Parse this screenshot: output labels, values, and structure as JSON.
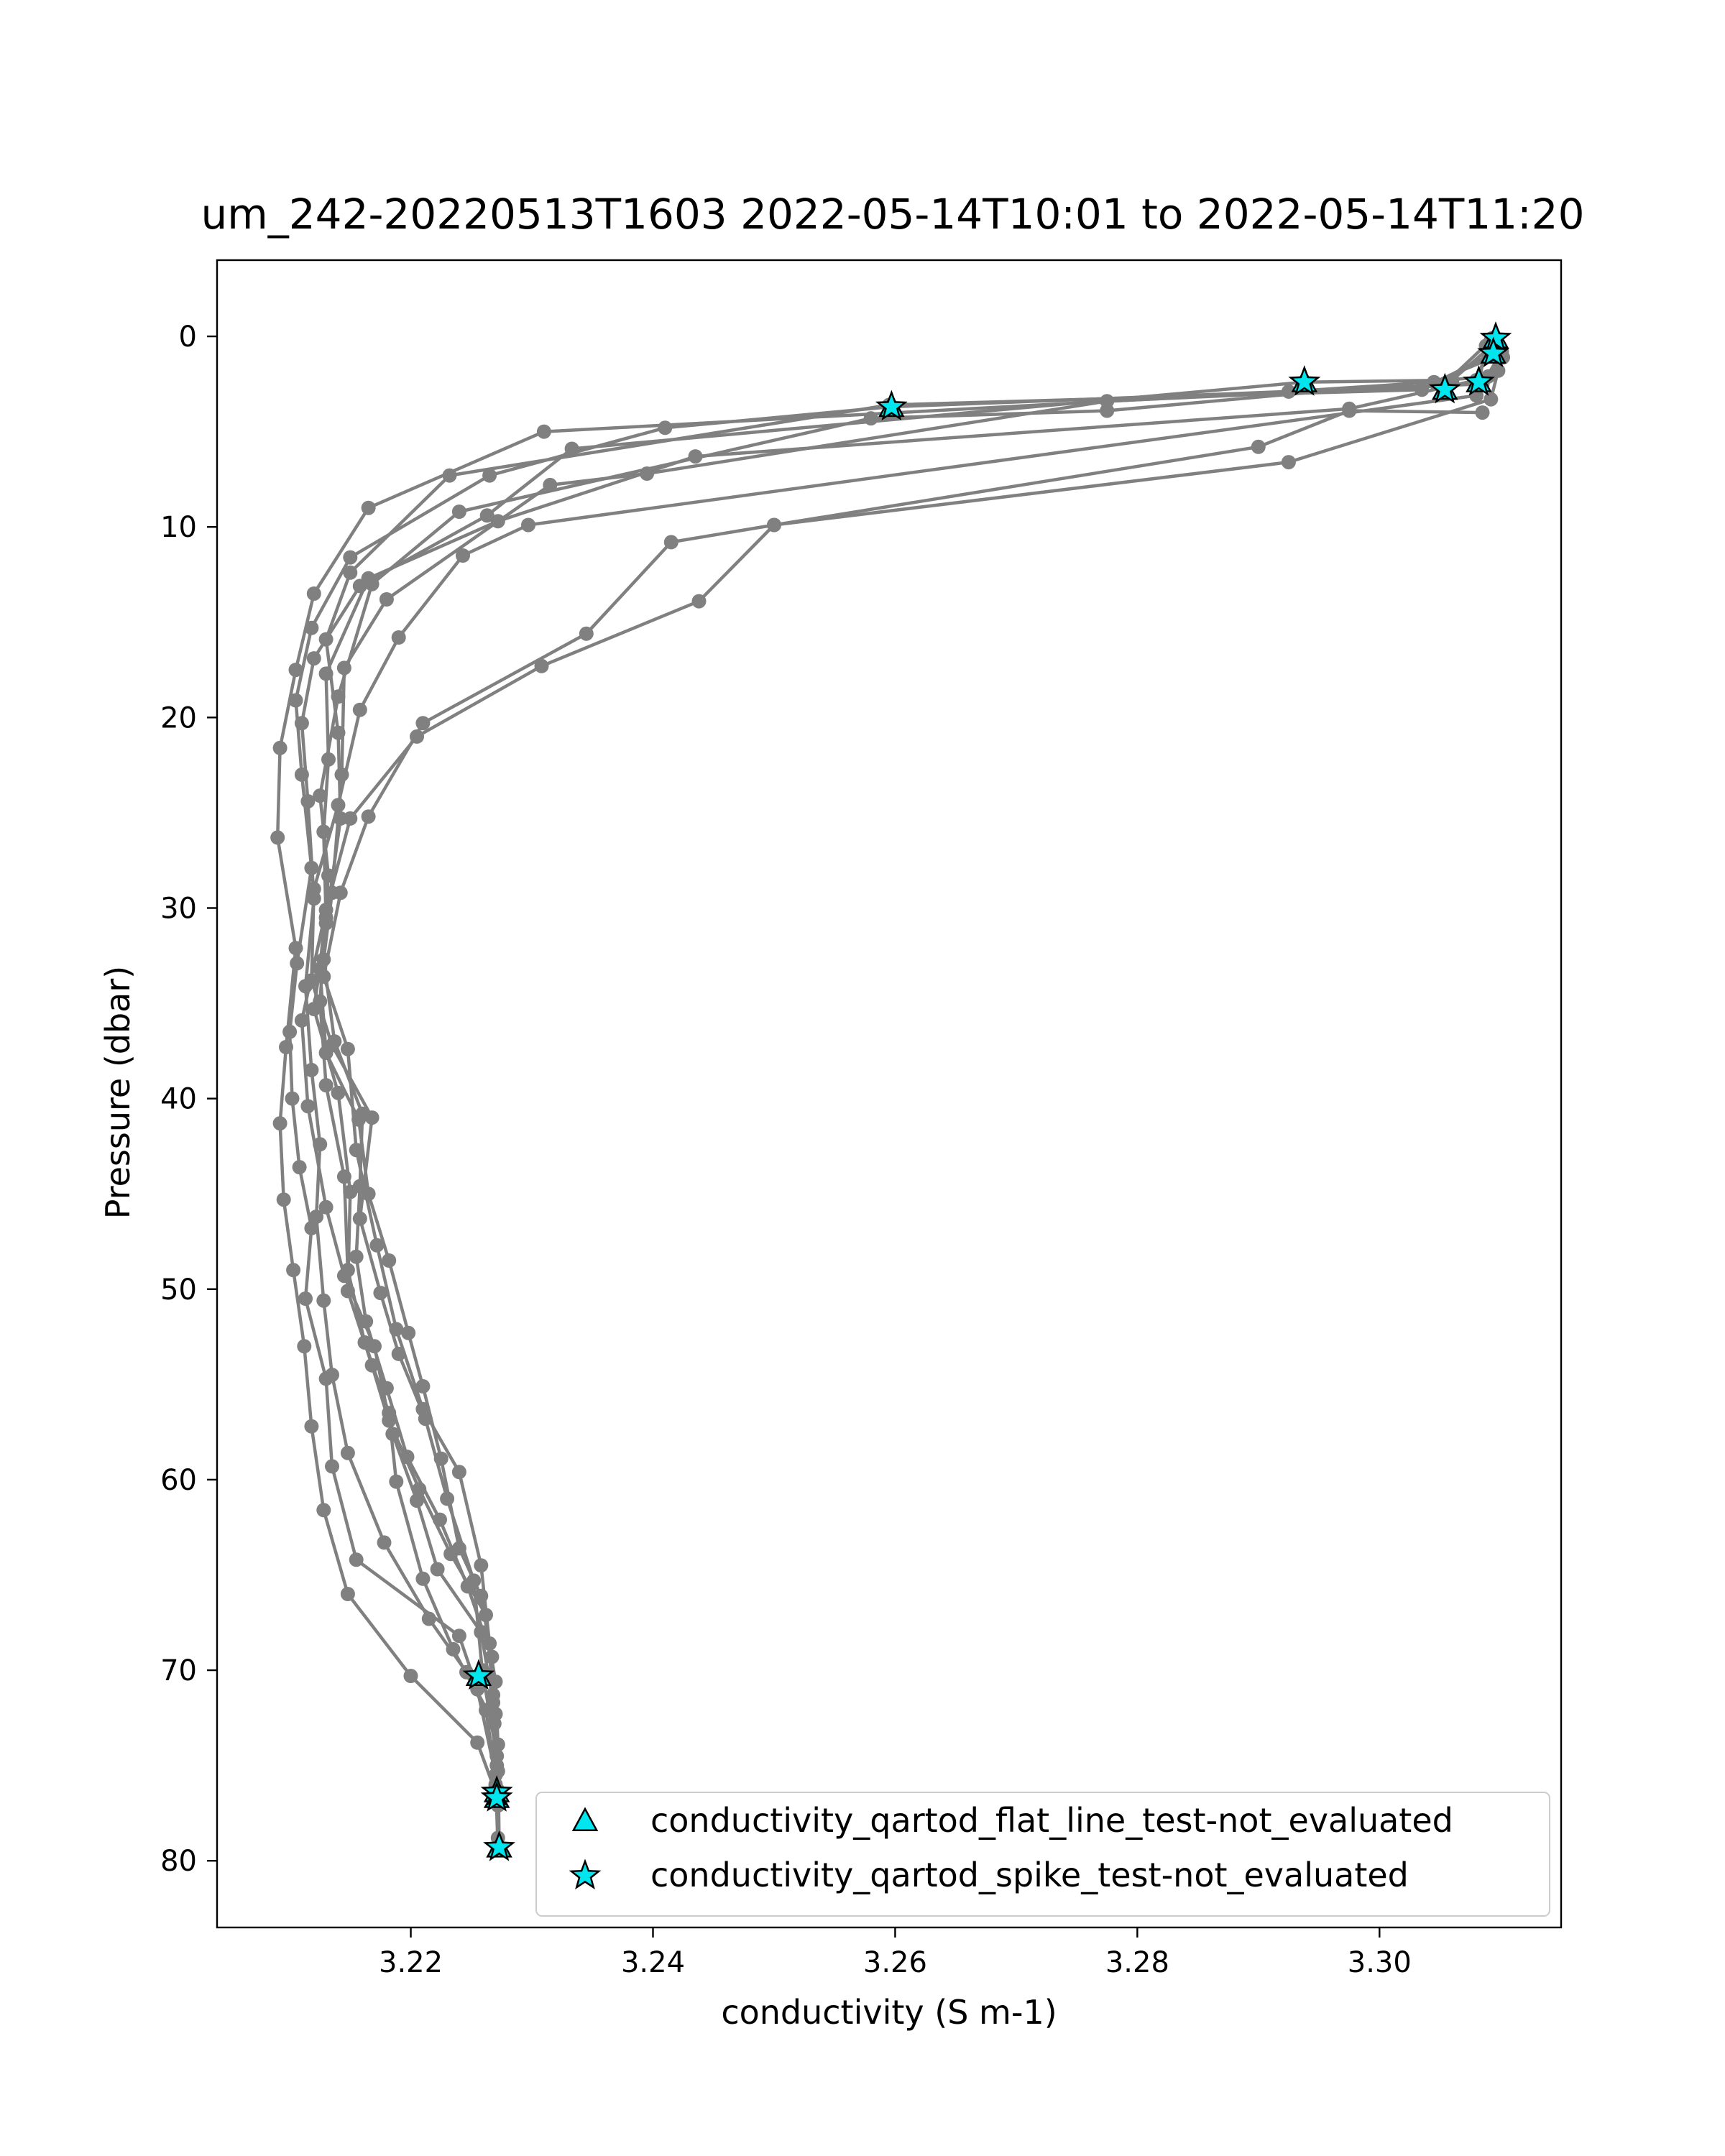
{
  "chart_data": {
    "type": "line",
    "title": "um_242-20220513T1603 2022-05-14T10:01 to 2022-05-14T11:20",
    "xlabel": "conductivity (S m-1)",
    "ylabel": "Pressure (dbar)",
    "xlim": [
      3.204,
      3.315
    ],
    "ylim": [
      83.5,
      -4
    ],
    "y_inverted": true,
    "xticks": [
      3.22,
      3.24,
      3.26,
      3.28,
      3.3
    ],
    "xtick_labels": [
      "3.22",
      "3.24",
      "3.26",
      "3.28",
      "3.30"
    ],
    "yticks": [
      0,
      10,
      20,
      30,
      40,
      50,
      60,
      70,
      80
    ],
    "ytick_labels": [
      "0",
      "10",
      "20",
      "30",
      "40",
      "50",
      "60",
      "70",
      "80"
    ],
    "grid": false,
    "legend_position": "lower-right",
    "colors": {
      "profile": "#808080",
      "flag_fill": "#00e5ee",
      "flag_edge": "#000000"
    },
    "series": [
      {
        "points": [
          [
            3.3095,
            0.2
          ],
          [
            3.3098,
            1.0
          ],
          [
            3.3045,
            2.4
          ],
          [
            3.2925,
            2.9
          ],
          [
            3.231,
            5.0
          ],
          [
            3.2165,
            9.0
          ],
          [
            3.212,
            13.5
          ],
          [
            3.2105,
            17.5
          ],
          [
            3.2092,
            21.6
          ],
          [
            3.209,
            26.3
          ],
          [
            3.2105,
            32.1
          ],
          [
            3.2097,
            37.3
          ],
          [
            3.2092,
            41.3
          ],
          [
            3.2095,
            45.3
          ],
          [
            3.2103,
            49.0
          ],
          [
            3.2112,
            53.0
          ],
          [
            3.2118,
            57.2
          ],
          [
            3.2128,
            61.6
          ],
          [
            3.2148,
            66.0
          ],
          [
            3.22,
            70.3
          ],
          [
            3.2255,
            73.8
          ],
          [
            3.227,
            76.4
          ]
        ]
      },
      {
        "points": [
          [
            3.3101,
            0.8
          ],
          [
            3.3085,
            2.5
          ],
          [
            3.2595,
            3.7
          ],
          [
            3.241,
            4.8
          ],
          [
            3.2265,
            7.3
          ],
          [
            3.215,
            11.6
          ],
          [
            3.2118,
            15.3
          ],
          [
            3.2105,
            19.1
          ],
          [
            3.211,
            23.0
          ],
          [
            3.2118,
            27.9
          ],
          [
            3.2106,
            32.9
          ],
          [
            3.21,
            36.5
          ],
          [
            3.2102,
            40.0
          ],
          [
            3.2108,
            43.6
          ],
          [
            3.2118,
            46.8
          ],
          [
            3.2113,
            50.5
          ],
          [
            3.213,
            54.7
          ],
          [
            3.2135,
            59.3
          ],
          [
            3.2155,
            64.2
          ],
          [
            3.224,
            68.2
          ],
          [
            3.2255,
            71.0
          ],
          [
            3.227,
            75.5
          ],
          [
            3.2272,
            79.4
          ]
        ]
      },
      {
        "points": [
          [
            3.3096,
            0.3
          ],
          [
            3.306,
            2.3
          ],
          [
            3.2938,
            2.4
          ],
          [
            3.2333,
            5.9
          ],
          [
            3.2263,
            9.4
          ],
          [
            3.2158,
            13.1
          ],
          [
            3.212,
            16.9
          ],
          [
            3.211,
            20.3
          ],
          [
            3.2115,
            24.4
          ],
          [
            3.212,
            29.5
          ],
          [
            3.2113,
            34.1
          ],
          [
            3.2118,
            38.5
          ],
          [
            3.2125,
            42.4
          ],
          [
            3.2122,
            46.2
          ],
          [
            3.2128,
            50.6
          ],
          [
            3.2135,
            54.5
          ],
          [
            3.2148,
            58.6
          ],
          [
            3.2178,
            63.3
          ],
          [
            3.2215,
            67.3
          ],
          [
            3.2246,
            70.1
          ],
          [
            3.2269,
            72.8
          ],
          [
            3.2271,
            76.7
          ]
        ]
      },
      {
        "points": [
          [
            3.3093,
            0.1
          ],
          [
            3.308,
            2.3
          ],
          [
            3.2975,
            3.8
          ],
          [
            3.2435,
            6.3
          ],
          [
            3.2272,
            9.7
          ],
          [
            3.2165,
            12.7
          ],
          [
            3.213,
            17.7
          ],
          [
            3.2132,
            22.2
          ],
          [
            3.2128,
            26.0
          ],
          [
            3.213,
            30.5
          ],
          [
            3.2125,
            34.9
          ],
          [
            3.213,
            39.3
          ],
          [
            3.2145,
            44.1
          ],
          [
            3.2148,
            49.0
          ],
          [
            3.2162,
            52.8
          ],
          [
            3.2182,
            56.5
          ],
          [
            3.2188,
            60.1
          ],
          [
            3.221,
            65.2
          ],
          [
            3.2235,
            68.9
          ],
          [
            3.2262,
            72.1
          ],
          [
            3.2272,
            76.3
          ]
        ]
      },
      {
        "points": [
          [
            3.3092,
            0.2
          ],
          [
            3.3052,
            2.6
          ],
          [
            3.2775,
            3.4
          ],
          [
            3.2395,
            7.2
          ],
          [
            3.2315,
            7.8
          ],
          [
            3.218,
            13.8
          ],
          [
            3.2145,
            17.4
          ],
          [
            3.2143,
            23.0
          ],
          [
            3.2135,
            29.2
          ],
          [
            3.2128,
            32.7
          ],
          [
            3.2137,
            37.0
          ],
          [
            3.216,
            40.8
          ],
          [
            3.2158,
            44.6
          ],
          [
            3.2155,
            48.3
          ],
          [
            3.2163,
            51.7
          ],
          [
            3.218,
            55.2
          ],
          [
            3.2197,
            58.8
          ],
          [
            3.2224,
            62.1
          ],
          [
            3.2247,
            65.6
          ],
          [
            3.2267,
            69.3
          ],
          [
            3.2271,
            75.0
          ]
        ]
      },
      {
        "points": [
          [
            3.309,
            1.0
          ],
          [
            3.3035,
            2.8
          ],
          [
            3.2595,
            3.6
          ],
          [
            3.2232,
            7.3
          ],
          [
            3.215,
            12.4
          ],
          [
            3.213,
            15.9
          ],
          [
            3.214,
            20.8
          ],
          [
            3.2142,
            25.3
          ],
          [
            3.213,
            30.8
          ],
          [
            3.212,
            35.3
          ],
          [
            3.214,
            39.7
          ],
          [
            3.215,
            44.9
          ],
          [
            3.2148,
            50.1
          ],
          [
            3.2168,
            54.0
          ],
          [
            3.2185,
            57.6
          ],
          [
            3.2205,
            61.1
          ],
          [
            3.2222,
            64.7
          ],
          [
            3.2258,
            68.0
          ],
          [
            3.2268,
            71.7
          ],
          [
            3.227,
            76.0
          ]
        ]
      },
      {
        "points": [
          [
            3.3102,
            1.1
          ],
          [
            3.309,
            2.1
          ],
          [
            3.2775,
            3.9
          ],
          [
            3.258,
            4.3
          ],
          [
            3.224,
            9.2
          ],
          [
            3.2168,
            13.0
          ],
          [
            3.214,
            18.9
          ],
          [
            3.2125,
            24.1
          ],
          [
            3.2132,
            28.3
          ],
          [
            3.2125,
            33.2
          ],
          [
            3.213,
            37.6
          ],
          [
            3.2157,
            41.1
          ],
          [
            3.2165,
            45.0
          ],
          [
            3.2182,
            48.5
          ],
          [
            3.2198,
            52.3
          ],
          [
            3.221,
            55.1
          ],
          [
            3.2225,
            58.9
          ],
          [
            3.224,
            63.6
          ],
          [
            3.2258,
            66.1
          ],
          [
            3.227,
            70.6
          ],
          [
            3.2272,
            73.9
          ],
          [
            3.2273,
            79.3
          ]
        ]
      },
      {
        "points": [
          [
            3.3088,
            0.5
          ],
          [
            3.308,
            3.1
          ],
          [
            3.2297,
            9.9
          ],
          [
            3.2243,
            11.5
          ],
          [
            3.219,
            15.8
          ],
          [
            3.2158,
            19.6
          ],
          [
            3.214,
            24.6
          ],
          [
            3.212,
            29.0
          ],
          [
            3.2118,
            33.8
          ],
          [
            3.2135,
            37.2
          ],
          [
            3.2168,
            41.0
          ],
          [
            3.2158,
            46.3
          ],
          [
            3.2175,
            50.2
          ],
          [
            3.219,
            53.4
          ],
          [
            3.2212,
            56.8
          ],
          [
            3.223,
            61.0
          ],
          [
            3.2252,
            65.3
          ],
          [
            3.2259,
            70.0
          ],
          [
            3.2271,
            74.5
          ],
          [
            3.2272,
            78.8
          ]
        ]
      },
      {
        "points": [
          [
            3.3085,
            4.0
          ],
          [
            3.2975,
            3.9
          ],
          [
            3.29,
            5.8
          ],
          [
            3.25,
            9.9
          ],
          [
            3.2415,
            10.8
          ],
          [
            3.2345,
            15.6
          ],
          [
            3.221,
            20.3
          ],
          [
            3.2165,
            25.2
          ],
          [
            3.2142,
            29.2
          ],
          [
            3.2128,
            33.6
          ],
          [
            3.2148,
            37.4
          ],
          [
            3.2155,
            42.7
          ],
          [
            3.2172,
            47.7
          ],
          [
            3.2188,
            52.1
          ],
          [
            3.221,
            56.3
          ],
          [
            3.224,
            59.6
          ],
          [
            3.2258,
            64.5
          ],
          [
            3.2265,
            68.6
          ],
          [
            3.227,
            72.3
          ],
          [
            3.2272,
            77.1
          ]
        ]
      },
      {
        "points": [
          [
            3.3098,
            1.8
          ],
          [
            3.3092,
            3.3
          ],
          [
            3.2925,
            6.6
          ],
          [
            3.25,
            9.9
          ],
          [
            3.2438,
            13.9
          ],
          [
            3.2308,
            17.3
          ],
          [
            3.2205,
            21.0
          ],
          [
            3.215,
            25.3
          ],
          [
            3.213,
            30.1
          ],
          [
            3.211,
            35.9
          ],
          [
            3.2115,
            40.4
          ],
          [
            3.213,
            45.7
          ],
          [
            3.2145,
            49.3
          ],
          [
            3.217,
            53.0
          ],
          [
            3.2182,
            56.9
          ],
          [
            3.2207,
            60.5
          ],
          [
            3.2233,
            63.9
          ],
          [
            3.2262,
            67.1
          ],
          [
            3.2268,
            71.3
          ],
          [
            3.2272,
            75.3
          ]
        ]
      }
    ],
    "flag_series": [
      {
        "name": "conductivity_qartod_flat_line_test-not_evaluated",
        "marker": "triangle",
        "points": [
          [
            3.3096,
            0.1
          ],
          [
            3.3094,
            0.9
          ],
          [
            3.2938,
            2.4
          ],
          [
            3.3082,
            2.4
          ],
          [
            3.3054,
            2.8
          ],
          [
            3.2597,
            3.7
          ],
          [
            3.2256,
            70.3
          ],
          [
            3.2271,
            76.4
          ],
          [
            3.2271,
            76.7
          ],
          [
            3.2273,
            79.3
          ]
        ]
      },
      {
        "name": "conductivity_qartod_spike_test-not_evaluated",
        "marker": "star",
        "points": [
          [
            3.3096,
            0.1
          ],
          [
            3.3094,
            0.9
          ],
          [
            3.2938,
            2.4
          ],
          [
            3.3082,
            2.4
          ],
          [
            3.3054,
            2.8
          ],
          [
            3.2597,
            3.7
          ],
          [
            3.2256,
            70.3
          ],
          [
            3.2271,
            76.4
          ],
          [
            3.2271,
            76.7
          ],
          [
            3.2273,
            79.3
          ]
        ]
      }
    ]
  }
}
